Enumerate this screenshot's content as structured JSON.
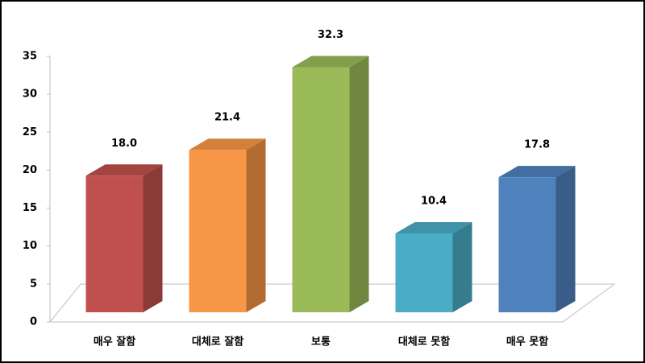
{
  "chart_data": {
    "type": "bar3d",
    "categories": [
      "매우 잘함",
      "대체로 잘함",
      "보통",
      "대체로 못함",
      "매우 못함"
    ],
    "values": [
      18.0,
      21.4,
      32.3,
      10.4,
      17.8
    ],
    "value_labels": [
      "18.0",
      "21.4",
      "32.3",
      "10.4",
      "17.8"
    ],
    "colors": [
      "#c0504d",
      "#f79646",
      "#9bbb59",
      "#4bacc6",
      "#4f81bd"
    ],
    "ylim": [
      0,
      35
    ],
    "yticks": [
      0,
      5,
      10,
      15,
      20,
      25,
      30,
      35
    ]
  }
}
